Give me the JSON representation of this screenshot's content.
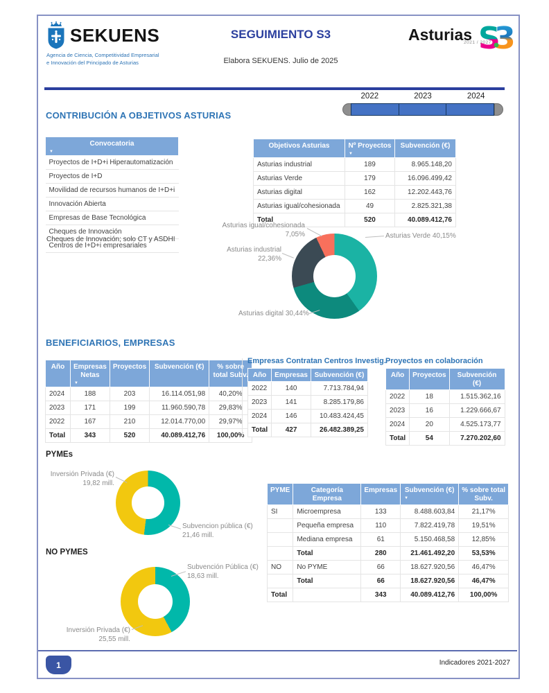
{
  "header": {
    "logo": {
      "name": "SEKUENS",
      "tagline_line1": "Agencia de Ciencia, Competitividad Empresarial",
      "tagline_line2": "e Innovación del Principado de Asturias"
    },
    "title": "SEGUIMIENTO S3",
    "subtitle": "Elabora SEKUENS. Julio de 2025",
    "brand": {
      "text": "Asturias",
      "s3": "S3",
      "years": "2021 / 2027"
    }
  },
  "slicer": {
    "years": [
      "2022",
      "2023",
      "2024"
    ]
  },
  "sections": {
    "contribucion": "CONTRIBUCIÓN A OBJETIVOS ASTURIAS",
    "beneficiarios": "BENEFICIARIOS, EMPRESAS",
    "empresas_contratan": "Empresas Contratan Centros Investig.",
    "proyectos_colaboracion": "Proyectos en colaboración",
    "pymes": "PYMEs",
    "no_pymes": "NO PYMES"
  },
  "convocatoria": {
    "headers": [
      {
        "label": "Convocatoria",
        "sort": true
      }
    ],
    "aligns": [
      "l"
    ],
    "widths": [
      192
    ],
    "rows": [
      {
        "cells": [
          "Proyectos de I+D+i Hiperautomatización"
        ]
      },
      {
        "cells": [
          "Proyectos de I+D"
        ]
      },
      {
        "cells": [
          "Movilidad de recursos humanos de I+D+i"
        ]
      },
      {
        "cells": [
          "Innovación Abierta"
        ]
      },
      {
        "cells": [
          "Empresas de Base Tecnológica"
        ]
      },
      {
        "cells": [
          "Cheques de Innovación"
        ]
      },
      {
        "cells": [
          "Centros de I+D+i empresariales"
        ]
      }
    ],
    "footnote": "Cheques de Innovación; solo CT y ASDHI"
  },
  "tables": {
    "objetivos": {
      "headers": [
        {
          "label": "Objetivos Asturias"
        },
        {
          "label": "Nº Proyectos",
          "sort": true
        },
        {
          "label": "Subvención (€)"
        }
      ],
      "aligns": [
        "l",
        "c",
        "r"
      ],
      "widths": [
        132,
        72,
        88
      ],
      "rows": [
        {
          "cells": [
            "Asturias industrial",
            "189",
            "8.965.148,20"
          ]
        },
        {
          "cells": [
            "Asturias Verde",
            "179",
            "16.096.499,42"
          ]
        },
        {
          "cells": [
            "Asturias digital",
            "162",
            "12.202.443,76"
          ]
        },
        {
          "cells": [
            "Asturias igual/cohesionada",
            "49",
            "2.825.321,38"
          ]
        },
        {
          "cells": [
            "Total",
            "520",
            "40.089.412,76"
          ],
          "bold": true
        }
      ]
    },
    "beneficiarios": {
      "headers": [
        {
          "label": "Año"
        },
        {
          "label": "Empresas\nNetas",
          "sort": true
        },
        {
          "label": "Proyectos"
        },
        {
          "label": "Subvención (€)"
        },
        {
          "label": "% sobre\ntotal Subv."
        }
      ],
      "aligns": [
        "l",
        "c",
        "c",
        "r",
        "c"
      ],
      "widths": [
        36,
        54,
        55,
        86,
        62
      ],
      "rows": [
        {
          "cells": [
            "2024",
            "188",
            "203",
            "16.114.051,98",
            "40,20%"
          ]
        },
        {
          "cells": [
            "2023",
            "171",
            "199",
            "11.960.590,78",
            "29,83%"
          ]
        },
        {
          "cells": [
            "2022",
            "167",
            "210",
            "12.014.770,00",
            "29,97%"
          ]
        },
        {
          "cells": [
            "Total",
            "343",
            "520",
            "40.089.412,76",
            "100,00%"
          ],
          "bold": true
        }
      ]
    },
    "contratan": {
      "headers": [
        {
          "label": "Año"
        },
        {
          "label": "Empresas"
        },
        {
          "label": "Subvención (€)"
        }
      ],
      "aligns": [
        "l",
        "c",
        "r"
      ],
      "widths": [
        34,
        52,
        82
      ],
      "rows": [
        {
          "cells": [
            "2022",
            "140",
            "7.713.784,94"
          ]
        },
        {
          "cells": [
            "2023",
            "141",
            "8.285.179,86"
          ]
        },
        {
          "cells": [
            "2024",
            "146",
            "10.483.424,45"
          ]
        },
        {
          "cells": [
            "Total",
            "427",
            "26.482.389,25"
          ],
          "bold": true
        }
      ]
    },
    "colaboracion": {
      "headers": [
        {
          "label": "Año"
        },
        {
          "label": "Proyectos"
        },
        {
          "label": "Subvención (€)"
        }
      ],
      "aligns": [
        "l",
        "c",
        "r"
      ],
      "widths": [
        34,
        54,
        80
      ],
      "rows": [
        {
          "cells": [
            "2022",
            "18",
            "1.515.362,16"
          ]
        },
        {
          "cells": [
            "2023",
            "16",
            "1.229.666,67"
          ]
        },
        {
          "cells": [
            "2024",
            "20",
            "4.525.173,77"
          ]
        },
        {
          "cells": [
            "Total",
            "54",
            "7.270.202,60"
          ],
          "bold": true
        }
      ]
    },
    "pyme": {
      "headers": [
        {
          "label": "PYME"
        },
        {
          "label": "Categoría Empresa"
        },
        {
          "label": "Empresas"
        },
        {
          "label": "Subvención (€)",
          "sort": true
        },
        {
          "label": "% sobre total\nSubv."
        }
      ],
      "aligns": [
        "l",
        "l",
        "c",
        "r",
        "c"
      ],
      "widths": [
        36,
        98,
        52,
        84,
        72
      ],
      "rows": [
        {
          "cells": [
            "SI",
            "Microempresa",
            "133",
            "8.488.603,84",
            "21,17%"
          ]
        },
        {
          "cells": [
            "",
            "Pequeña empresa",
            "110",
            "7.822.419,78",
            "19,51%"
          ]
        },
        {
          "cells": [
            "",
            "Mediana empresa",
            "61",
            "5.150.468,58",
            "12,85%"
          ]
        },
        {
          "cells": [
            "",
            "Total",
            "280",
            "21.461.492,20",
            "53,53%"
          ],
          "bold": true
        },
        {
          "cells": [
            "NO",
            "No PYME",
            "66",
            "18.627.920,56",
            "46,47%"
          ]
        },
        {
          "cells": [
            "",
            "Total",
            "66",
            "18.627.920,56",
            "46,47%"
          ],
          "bold": true
        },
        {
          "cells": [
            "Total",
            "",
            "343",
            "40.089.412,76",
            "100,00%"
          ],
          "bold": true
        }
      ]
    }
  },
  "chart_data": [
    {
      "type": "pie",
      "name": "subvencion-por-objetivo-asturias",
      "donut": true,
      "slices": [
        {
          "label": "Asturias Verde",
          "pct": "40,15%",
          "value": 40.15,
          "color": "#1BB3A4"
        },
        {
          "label": "Asturias digital",
          "pct": "30,44%",
          "value": 30.44,
          "color": "#0D8A7D"
        },
        {
          "label": "Asturias industrial",
          "pct": "22,36%",
          "value": 22.36,
          "color": "#3B4A54"
        },
        {
          "label": "Asturias igual/cohesionada",
          "pct": "7,05%",
          "value": 7.05,
          "color": "#F8705C"
        }
      ]
    },
    {
      "type": "pie",
      "name": "pymes-subvencion-vs-inversion",
      "donut": true,
      "slices": [
        {
          "label": "Subvencion pública (€)",
          "value_label": "21,46 mill.",
          "value": 21.46,
          "color": "#01B8AA"
        },
        {
          "label": "Inversión Privada (€)",
          "value_label": "19,82 mill.",
          "value": 19.82,
          "color": "#F2C80F"
        }
      ]
    },
    {
      "type": "pie",
      "name": "no-pymes-subvencion-vs-inversion",
      "donut": true,
      "slices": [
        {
          "label": "Subvención Pública (€)",
          "value_label": "18,63 mill.",
          "value": 18.63,
          "color": "#01B8AA"
        },
        {
          "label": "Inversión Privada (€)",
          "value_label": "25,55 mill.",
          "value": 25.55,
          "color": "#F2C80F"
        }
      ]
    }
  ],
  "footer": {
    "page": "1",
    "right": "Indicadores 2021-2027"
  }
}
